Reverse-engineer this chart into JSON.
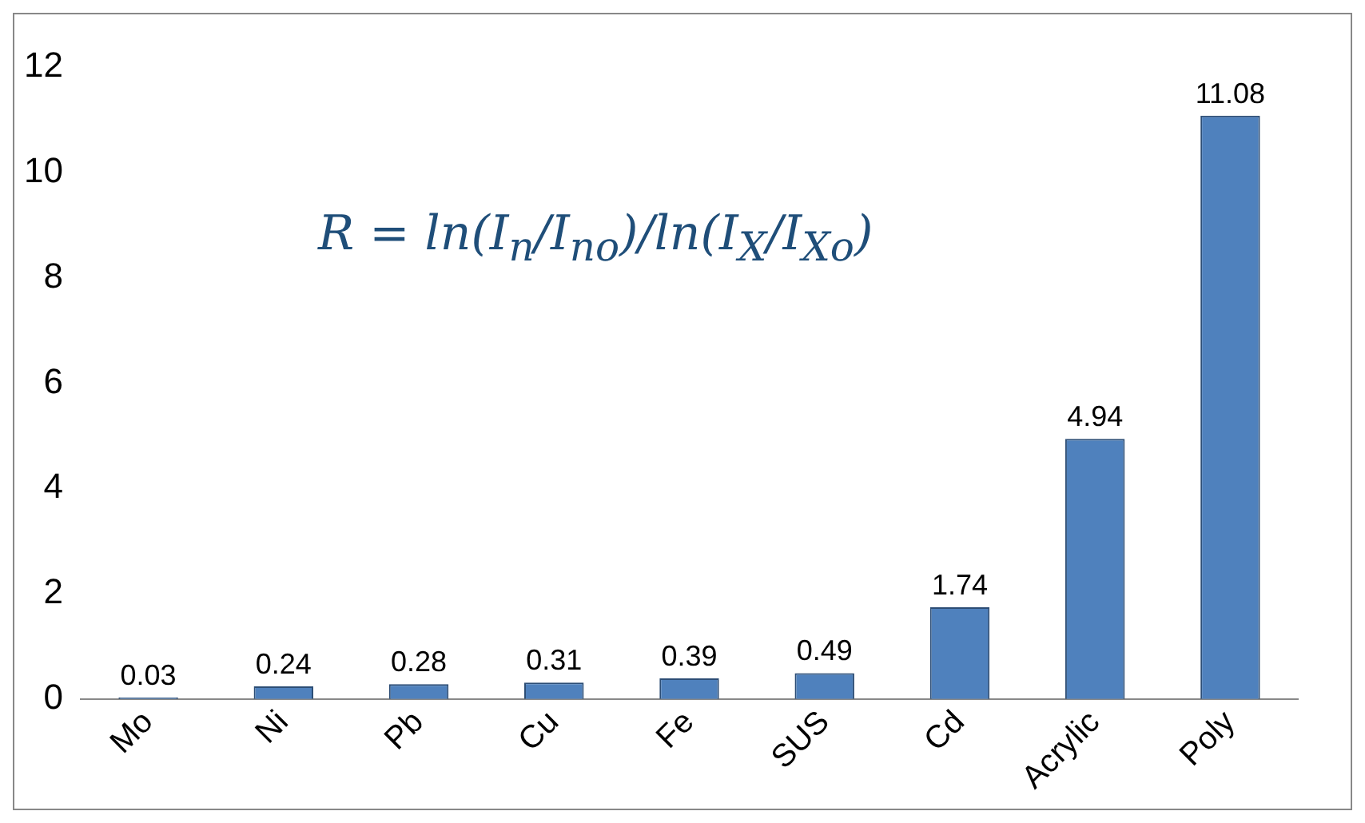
{
  "chart_data": {
    "type": "bar",
    "categories": [
      "Mo",
      "Ni",
      "Pb",
      "Cu",
      "Fe",
      "SUS",
      "Cd",
      "Acrylic",
      "Poly"
    ],
    "values": [
      0.03,
      0.24,
      0.28,
      0.31,
      0.39,
      0.49,
      1.74,
      4.94,
      11.08
    ],
    "color": "#4f81bd",
    "ylim": [
      0,
      12
    ],
    "yticks": [
      0,
      2,
      4,
      6,
      8,
      10,
      12
    ],
    "grid": false,
    "legend": false,
    "data_labels": true,
    "annotations": [
      "R = ln(I$_{n}$/I$_{no}$)/ln(I$_{X}$/I$_{Xo}$)"
    ]
  }
}
